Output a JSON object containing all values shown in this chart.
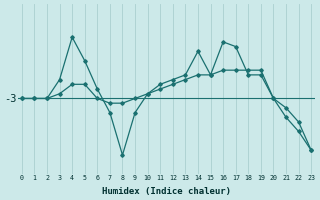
{
  "xlabel": "Humidex (Indice chaleur)",
  "bg_color": "#cce9e9",
  "line_color": "#1a7070",
  "grid_color": "#aacfcf",
  "hline_color": "#1a7070",
  "x": [
    0,
    1,
    2,
    3,
    4,
    5,
    6,
    7,
    8,
    9,
    10,
    11,
    12,
    13,
    14,
    15,
    16,
    17,
    18,
    19,
    20,
    21,
    22,
    23
  ],
  "line_zigzag": [
    -3.0,
    -3.0,
    -3.0,
    -2.6,
    -1.7,
    -2.2,
    -2.8,
    -3.3,
    -4.2,
    -3.3,
    -2.9,
    -2.7,
    -2.6,
    -2.5,
    -2.0,
    -2.5,
    -1.8,
    -1.9,
    -2.5,
    -2.5,
    -3.0,
    -3.4,
    -3.7,
    -4.1
  ],
  "line_diag": [
    -3.0,
    -3.0,
    -3.0,
    -2.9,
    -2.7,
    -2.7,
    -3.0,
    -3.1,
    -3.1,
    -3.0,
    -2.9,
    -2.8,
    -2.7,
    -2.6,
    -2.5,
    -2.5,
    -2.4,
    -2.4,
    -2.4,
    -2.4,
    -3.0,
    -3.2,
    -3.5,
    -4.1
  ],
  "ylim": [
    -4.6,
    -1.0
  ],
  "ytick_value": -3.0,
  "ytick_label": "-3",
  "xlim_min": -0.3,
  "xlim_max": 23.3
}
